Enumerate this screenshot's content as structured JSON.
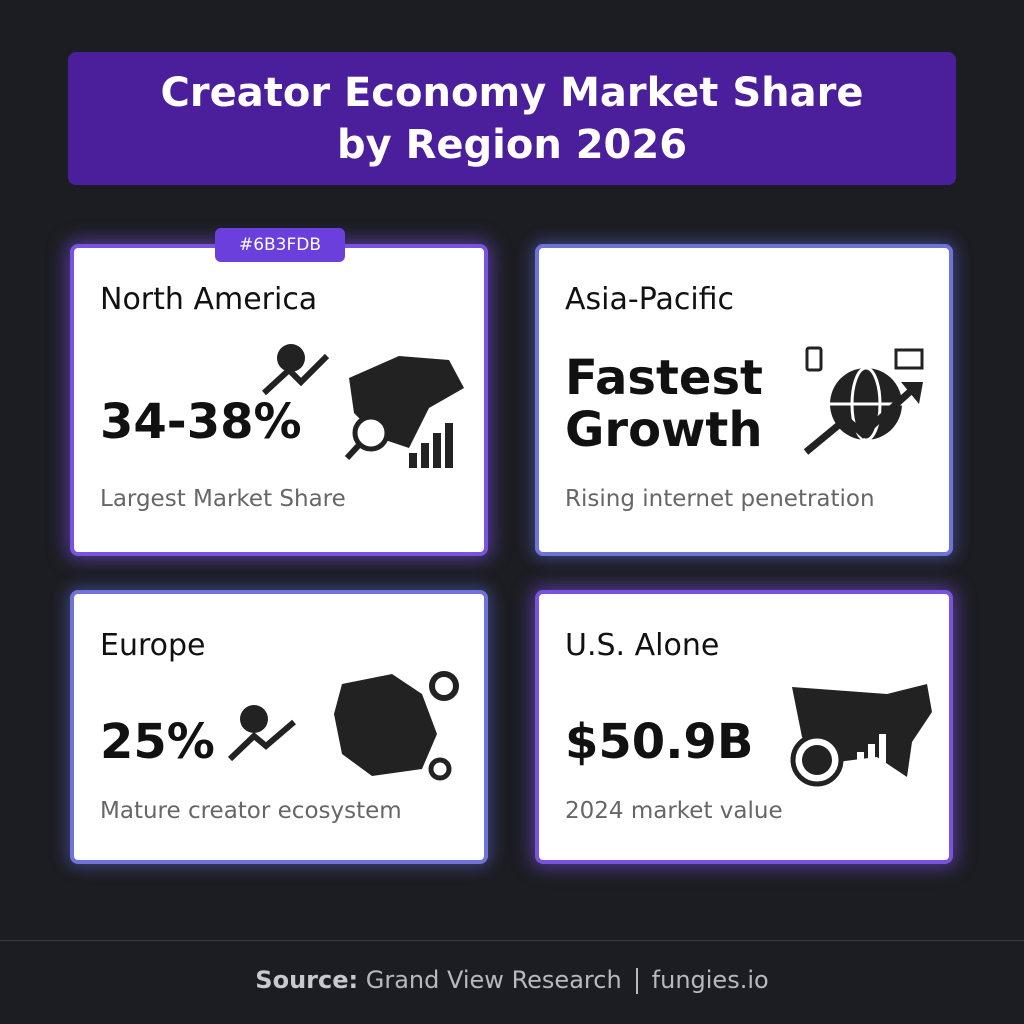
{
  "header": {
    "title": "Creator Economy Market Share by Region 2026"
  },
  "badge": "#6B3FDB",
  "cards": [
    {
      "region": "North America",
      "value": "34-38%",
      "note": "Largest Market Share"
    },
    {
      "region": "Asia-Pacific",
      "value": "Fastest Growth",
      "note": "Rising internet penetration"
    },
    {
      "region": "Europe",
      "value": "25%",
      "note": "Mature creator ecosystem"
    },
    {
      "region": "U.S. Alone",
      "value": "$50.9B",
      "note": "2024 market value"
    }
  ],
  "footer": {
    "source_label": "Source:",
    "source": "Grand View Research",
    "site": "fungies.io"
  }
}
